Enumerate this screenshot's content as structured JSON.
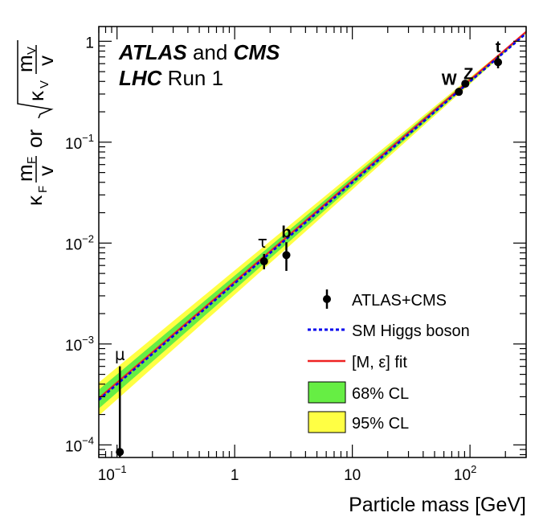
{
  "chart_data": {
    "type": "scatter",
    "title": "",
    "experiment": {
      "line1_bold": "ATLAS",
      "line1_mid": " and ",
      "line1_bold2": "CMS",
      "line2_bold": "LHC",
      "line2_rest": " Run 1"
    },
    "xlabel": "Particle mass [GeV]",
    "ylabel": {
      "kappa_f": "κ",
      "kappa_f_sub": "F",
      "m_f": "m",
      "m_f_sub": "F",
      "v": "v",
      "or": "or",
      "kappa_v": "κ",
      "kappa_v_sub": "V",
      "m_v": "m",
      "m_v_sub": "V"
    },
    "x_scale": "log",
    "y_scale": "log",
    "xlim": [
      0.07,
      300
    ],
    "ylim": [
      7.5e-05,
      1.4
    ],
    "x_ticks": [
      {
        "value": 0.1,
        "base": "10",
        "exp": "−1"
      },
      {
        "value": 1,
        "base": "1",
        "exp": ""
      },
      {
        "value": 10,
        "base": "10",
        "exp": ""
      },
      {
        "value": 100,
        "base": "10",
        "exp": "2"
      }
    ],
    "y_ticks": [
      {
        "value": 0.0001,
        "base": "10",
        "exp": "−4"
      },
      {
        "value": 0.001,
        "base": "10",
        "exp": "−3"
      },
      {
        "value": 0.01,
        "base": "10",
        "exp": "−2"
      },
      {
        "value": 0.1,
        "base": "10",
        "exp": "−1"
      },
      {
        "value": 1,
        "base": "1",
        "exp": ""
      }
    ],
    "points": [
      {
        "label": "μ",
        "mass": 0.1057,
        "y": 8.5e-05,
        "y_lo": 1e-05,
        "y_hi": 0.0006
      },
      {
        "label": "τ",
        "mass": 1.777,
        "y": 0.0066,
        "y_lo": 0.0055,
        "y_hi": 0.0078
      },
      {
        "label": "b",
        "mass": 2.75,
        "y": 0.0076,
        "y_lo": 0.0053,
        "y_hi": 0.0102
      },
      {
        "label": "W",
        "mass": 80.4,
        "y": 0.315,
        "y_lo": 0.29,
        "y_hi": 0.345
      },
      {
        "label": "Z",
        "mass": 91.2,
        "y": 0.38,
        "y_lo": 0.355,
        "y_hi": 0.405
      },
      {
        "label": "t",
        "mass": 173.2,
        "y": 0.62,
        "y_lo": 0.54,
        "y_hi": 0.72
      }
    ],
    "sm_line": {
      "name": "SM Higgs boson",
      "vev": 246.22,
      "color": "#0000ee"
    },
    "fit": {
      "name": "[M, ε] fit",
      "M": 246,
      "epsilon": 0.0,
      "color": "#ee2222"
    },
    "band68": {
      "name": "68% CL",
      "color": "#66ee44",
      "rel_at_min": 0.22
    },
    "band95": {
      "name": "95% CL",
      "color": "#ffff44",
      "rel_at_min": 0.44
    },
    "data_name": "ATLAS+CMS",
    "legend_position": "bottom-right",
    "grid": false
  }
}
